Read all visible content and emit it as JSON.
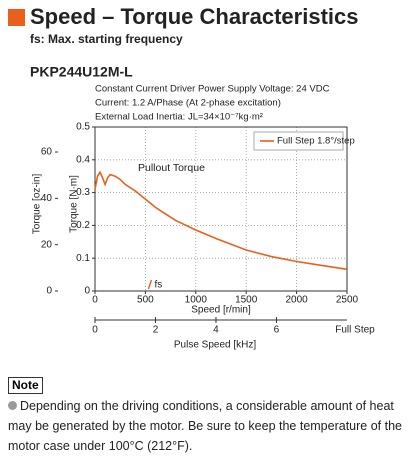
{
  "header": {
    "title": "Speed – Torque Characteristics",
    "subtitle": "fs: Max. starting frequency"
  },
  "chart_data": {
    "type": "line",
    "title": "PKP244U12M-L",
    "conditions": [
      "Constant Current Driver   Power Supply Voltage: 24 VDC",
      "Current: 1.2 A/Phase (At 2-phase excitation)",
      "External Load Inertia: JL=34×10⁻⁷kg·m²"
    ],
    "xlabel": "Speed [r/min]",
    "ylabel": "Torque [N·m]",
    "y2label": "Torque [oz-in]",
    "x2label": "Pulse Speed [kHz]",
    "x2_row_label": "Full Step",
    "x": [
      0,
      25,
      50,
      75,
      100,
      125,
      150,
      200,
      250,
      300,
      400,
      500,
      600,
      700,
      800,
      1000,
      1200,
      1500,
      1750,
      2000,
      2250,
      2500
    ],
    "series": [
      {
        "name": "Full Step 1.8°/step",
        "color": "#e8601c",
        "values": [
          0.31,
          0.35,
          0.362,
          0.345,
          0.325,
          0.345,
          0.355,
          0.35,
          0.34,
          0.325,
          0.305,
          0.28,
          0.255,
          0.235,
          0.215,
          0.186,
          0.16,
          0.125,
          0.105,
          0.09,
          0.078,
          0.066
        ]
      }
    ],
    "annotations": [
      {
        "text": "Pullout Torque"
      },
      {
        "text": "fs",
        "x": 560
      }
    ],
    "xlim": [
      0,
      2500
    ],
    "xticks": [
      0,
      500,
      1000,
      1500,
      2000,
      2500
    ],
    "ylim": [
      0,
      0.5
    ],
    "yticks": [
      0,
      0.1,
      0.2,
      0.3,
      0.4,
      0.5
    ],
    "y2lim": [
      0,
      70.8
    ],
    "y2ticks": [
      0,
      20,
      40,
      60
    ],
    "x2lim": [
      0,
      8.333
    ],
    "x2ticks": [
      0,
      2,
      4,
      6
    ],
    "grid": true,
    "legend": "upper right"
  },
  "note": {
    "label": "Note",
    "text": "Depending on the driving conditions, a considerable amount of heat may be generated by the motor. Be sure to keep the temperature of the motor case under 100°C (212°F)."
  }
}
